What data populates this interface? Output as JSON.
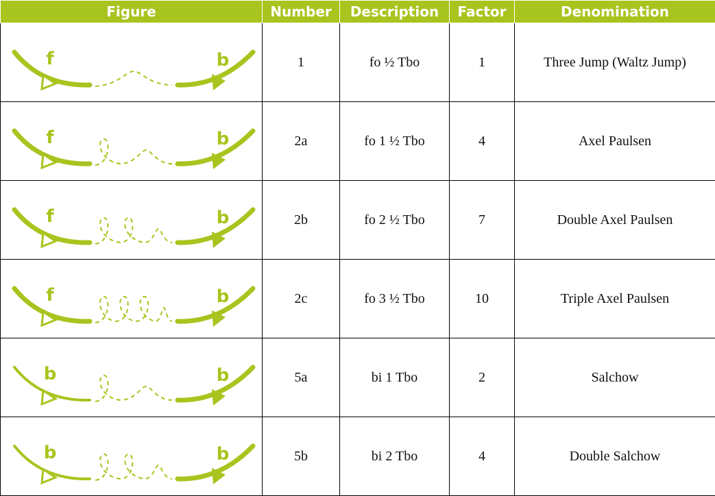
{
  "table": {
    "header": [
      "Figure",
      "Number",
      "Description",
      "Factor",
      "Denomination"
    ],
    "rows": [
      {
        "figure": {
          "start": "f",
          "end": "b"
        },
        "number": "1",
        "description": "fo ½ Tbo",
        "factor": 1,
        "denomination": "Three Jump (Waltz Jump)"
      },
      {
        "figure": {
          "start": "f",
          "end": "b"
        },
        "number": "2a",
        "description": "fo 1 ½ Tbo",
        "factor": 4,
        "denomination": "Axel Paulsen"
      },
      {
        "figure": {
          "start": "f",
          "end": "b"
        },
        "number": "2b",
        "description": "fo 2 ½ Tbo",
        "factor": 7,
        "denomination": "Double Axel Paulsen"
      },
      {
        "figure": {
          "start": "f",
          "end": "b"
        },
        "number": "2c",
        "description": "fo 3 ½ Tbo",
        "factor": 10,
        "denomination": "Triple Axel Paulsen"
      },
      {
        "figure": {
          "start": "b",
          "end": "b"
        },
        "number": "5a",
        "description": "bi 1 Tbo",
        "factor": 2,
        "denomination": "Salchow"
      },
      {
        "figure": {
          "start": "b",
          "end": "b"
        },
        "number": "5b",
        "description": "bi 2 Tbo",
        "factor": 4,
        "denomination": "Double Salchow"
      }
    ]
  }
}
